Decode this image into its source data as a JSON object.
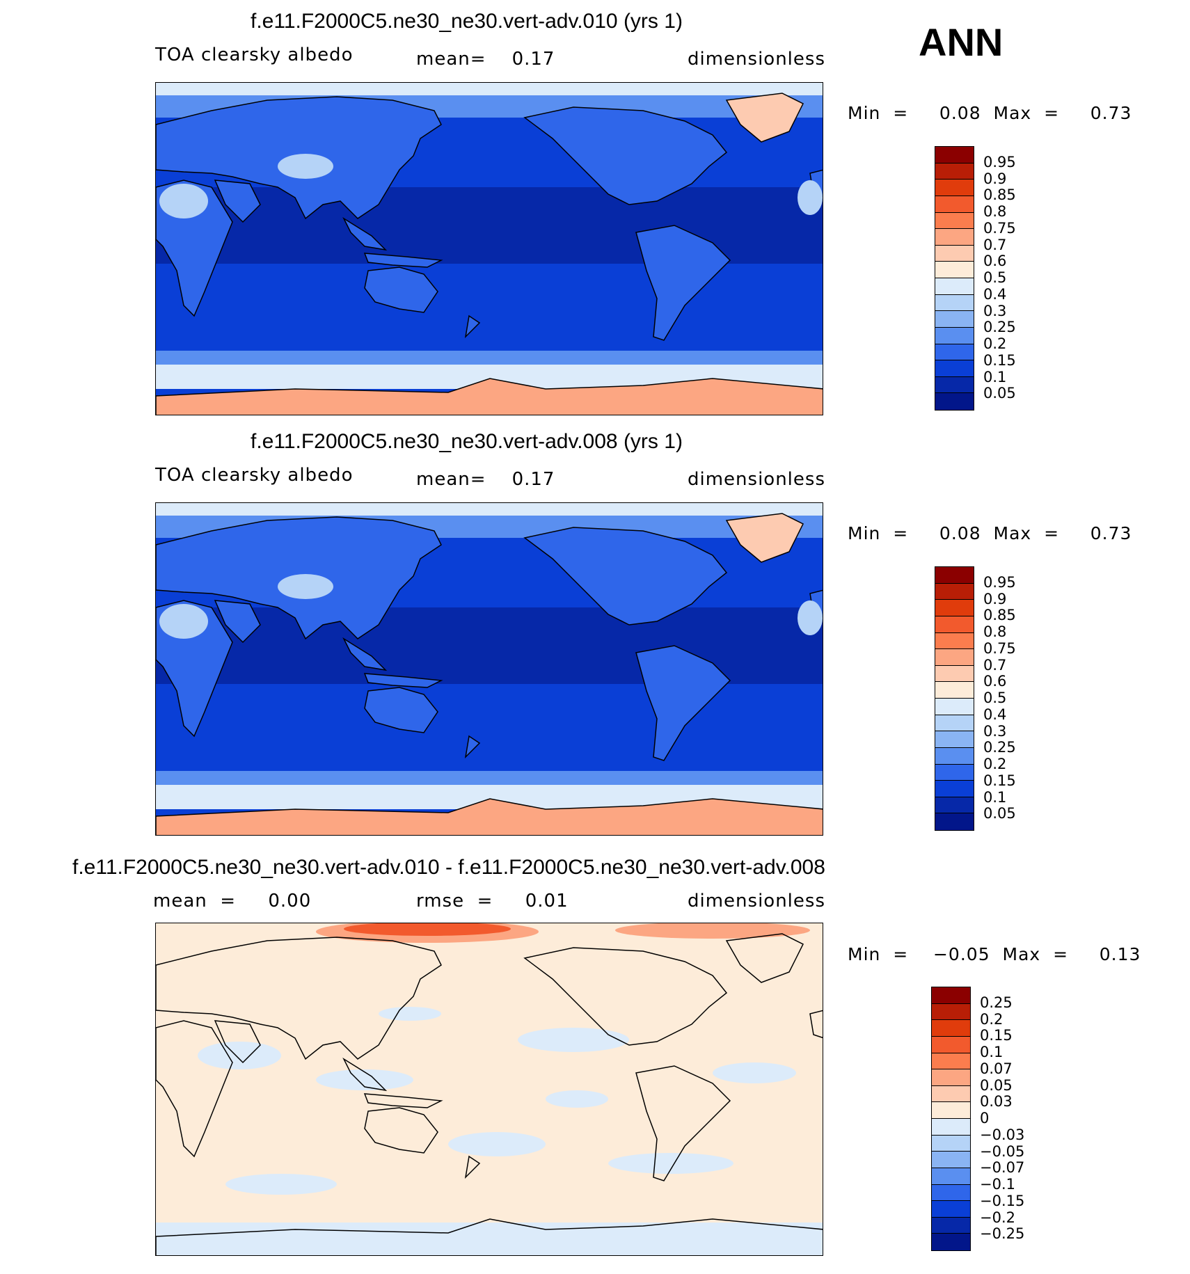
{
  "season": "ANN",
  "panels": [
    {
      "title": "f.e11.F2000C5.ne30_ne30.vert-adv.010 (yrs 1)",
      "left_text": "TOA clearsky albedo",
      "mid_text": "mean=    0.17",
      "right_text": "dimensionless",
      "minmax": "Min  =     0.08  Max  =     0.73",
      "colorbar_labels": [
        "0.95",
        "0.9",
        "0.85",
        "0.8",
        "0.75",
        "0.7",
        "0.6",
        "0.5",
        "0.4",
        "0.3",
        "0.25",
        "0.2",
        "0.15",
        "0.1",
        "0.05"
      ],
      "colorbar_colors": [
        "#8b0000",
        "#b81e06",
        "#e03c0c",
        "#f25a2d",
        "#fb7d4e",
        "#fca682",
        "#fdcbb1",
        "#fdecd9",
        "#dcebfa",
        "#b5d3f7",
        "#8ab4f3",
        "#5a8ff0",
        "#2f66ea",
        "#0a3fd6",
        "#0628a8",
        "#02168a"
      ],
      "map_colors": {
        "ocean": "#0a3fd6",
        "tropics": "#0628a8",
        "land": "#2f66ea",
        "desert": "#b5d3f7",
        "highlat": "#5a8ff0",
        "icebelt": "#dcebfa",
        "ice": "#fca682",
        "greenland": "#fdcbb1"
      }
    },
    {
      "title": "f.e11.F2000C5.ne30_ne30.vert-adv.008 (yrs 1)",
      "left_text": "TOA clearsky albedo",
      "mid_text": "mean=    0.17",
      "right_text": "dimensionless",
      "minmax": "Min  =     0.08  Max  =     0.73",
      "colorbar_labels": [
        "0.95",
        "0.9",
        "0.85",
        "0.8",
        "0.75",
        "0.7",
        "0.6",
        "0.5",
        "0.4",
        "0.3",
        "0.25",
        "0.2",
        "0.15",
        "0.1",
        "0.05"
      ],
      "colorbar_colors": [
        "#8b0000",
        "#b81e06",
        "#e03c0c",
        "#f25a2d",
        "#fb7d4e",
        "#fca682",
        "#fdcbb1",
        "#fdecd9",
        "#dcebfa",
        "#b5d3f7",
        "#8ab4f3",
        "#5a8ff0",
        "#2f66ea",
        "#0a3fd6",
        "#0628a8",
        "#02168a"
      ],
      "map_colors": {
        "ocean": "#0a3fd6",
        "tropics": "#0628a8",
        "land": "#2f66ea",
        "desert": "#b5d3f7",
        "highlat": "#5a8ff0",
        "icebelt": "#dcebfa",
        "ice": "#fca682",
        "greenland": "#fdcbb1"
      }
    },
    {
      "title": "f.e11.F2000C5.ne30_ne30.vert-adv.010 - f.e11.F2000C5.ne30_ne30.vert-adv.008",
      "left_text": "mean  =     0.00",
      "mid_text": "rmse  =     0.01",
      "right_text": "dimensionless",
      "minmax": "Min  =    −0.05  Max  =     0.13",
      "colorbar_labels": [
        "0.25",
        "0.2",
        "0.15",
        "0.1",
        "0.07",
        "0.05",
        "0.03",
        "0",
        "−0.03",
        "−0.05",
        "−0.07",
        "−0.1",
        "−0.15",
        "−0.2",
        "−0.25"
      ],
      "colorbar_colors": [
        "#8b0000",
        "#b81e06",
        "#e03c0c",
        "#f25a2d",
        "#fb7d4e",
        "#fca682",
        "#fdcbb1",
        "#fdecd9",
        "#dcebfa",
        "#b5d3f7",
        "#8ab4f3",
        "#5a8ff0",
        "#2f66ea",
        "#0a3fd6",
        "#0628a8",
        "#02168a"
      ],
      "map_colors": {
        "base": "#fdecd9",
        "neg": "#dcebfa",
        "pos_strong": "#f25a2d",
        "pos_mid": "#fca682"
      }
    }
  ]
}
